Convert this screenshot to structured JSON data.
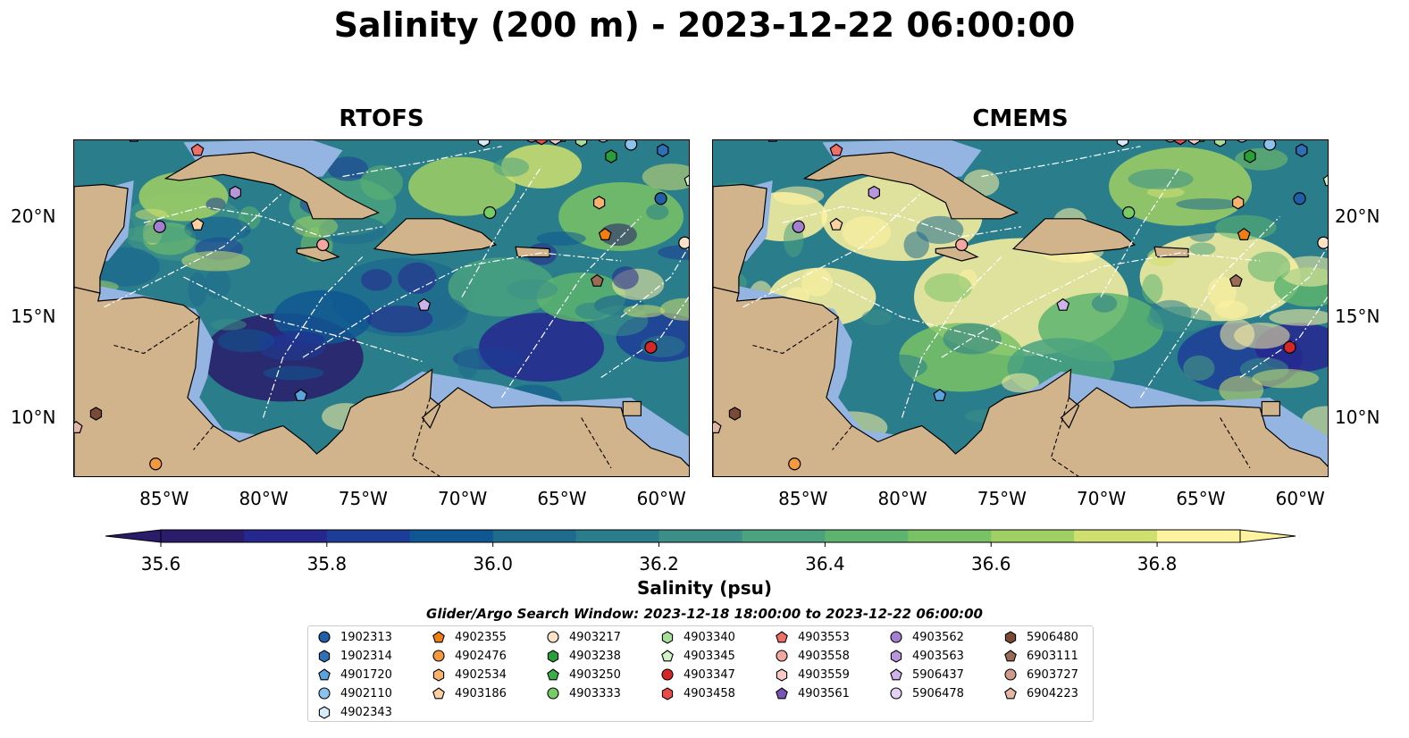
{
  "title": "Salinity (200 m) - 2023-12-22 06:00:00",
  "panels": [
    {
      "title": "RTOFS"
    },
    {
      "title": "CMEMS"
    }
  ],
  "chart_data": {
    "type": "heatmap",
    "title": "Salinity (200 m) - 2023-12-22 06:00:00",
    "panel_titles": [
      "RTOFS",
      "CMEMS"
    ],
    "x_ticks": [
      "85°W",
      "80°W",
      "75°W",
      "70°W",
      "65°W",
      "60°W"
    ],
    "y_ticks": [
      "20°N",
      "15°N",
      "10°N"
    ],
    "xlim": [
      -89.5,
      -58.5
    ],
    "ylim": [
      7,
      23.8
    ],
    "colorbar": {
      "label": "Salinity (psu)",
      "ticks": [
        "35.6",
        "35.8",
        "36.0",
        "36.2",
        "36.4",
        "36.6",
        "36.8"
      ],
      "min": 35.55,
      "max": 36.9,
      "colormap": [
        "#2a1b6b",
        "#26268f",
        "#1e3d98",
        "#0f5792",
        "#1f6b8e",
        "#2a7d8b",
        "#3b8f88",
        "#4aa27f",
        "#5db46f",
        "#7ac266",
        "#a0cf64",
        "#cfe06f",
        "#fff3a0"
      ]
    },
    "glider_argo_window": "Glider/Argo Search Window: 2023-12-18 18:00:00 to 2023-12-22 06:00:00",
    "floats": [
      {
        "id": "1902313",
        "shape": "circle",
        "color": "#1f5fa8",
        "lon": -60.0,
        "lat": 20.9
      },
      {
        "id": "1902314",
        "shape": "hexagon",
        "color": "#2e6fb5",
        "lon": -59.9,
        "lat": 23.3
      },
      {
        "id": "4901720",
        "shape": "pentagon",
        "color": "#5ba3dd",
        "lon": -78.1,
        "lat": 11.1
      },
      {
        "id": "4902110",
        "shape": "circle",
        "color": "#8cc3ee",
        "lon": -61.5,
        "lat": 23.6
      },
      {
        "id": "4902343",
        "shape": "hexagon",
        "color": "#d6ecfb",
        "lon": -68.9,
        "lat": 23.8
      },
      {
        "id": "4902355",
        "shape": "pentagon",
        "color": "#f07e12",
        "lon": -62.8,
        "lat": 19.1
      },
      {
        "id": "4902476",
        "shape": "circle",
        "color": "#f59a3c",
        "lon": -85.4,
        "lat": 7.7
      },
      {
        "id": "4902534",
        "shape": "hexagon",
        "color": "#f8b26e",
        "lon": -63.1,
        "lat": 20.7
      },
      {
        "id": "4903186",
        "shape": "pentagon",
        "color": "#fbd0a2",
        "lon": -83.3,
        "lat": 19.6
      },
      {
        "id": "4903217",
        "shape": "circle",
        "color": "#fde2c8",
        "lon": -58.8,
        "lat": 18.7
      },
      {
        "id": "4903238",
        "shape": "hexagon",
        "color": "#2a9e3a",
        "lon": -62.5,
        "lat": 23.0
      },
      {
        "id": "4903250",
        "shape": "pentagon",
        "color": "#3cae45",
        "lon": -65.0,
        "lat": 24.0
      },
      {
        "id": "4903333",
        "shape": "circle",
        "color": "#77cc66",
        "lon": -68.6,
        "lat": 20.2
      },
      {
        "id": "4903340",
        "shape": "hexagon",
        "color": "#a8df9a",
        "lon": -64.0,
        "lat": 23.8
      },
      {
        "id": "4903345",
        "shape": "pentagon",
        "color": "#d2f2c8",
        "lon": -58.5,
        "lat": 21.8
      },
      {
        "id": "4903347",
        "shape": "circle",
        "color": "#d62728",
        "lon": -60.5,
        "lat": 13.5
      },
      {
        "id": "4903458",
        "shape": "hexagon",
        "color": "#e94b4b",
        "lon": -66.0,
        "lat": 23.9
      },
      {
        "id": "4903553",
        "shape": "pentagon",
        "color": "#ef6f66",
        "lon": -83.3,
        "lat": 23.3
      },
      {
        "id": "4903558",
        "shape": "circle",
        "color": "#f4a6a1",
        "lon": -77.0,
        "lat": 18.6
      },
      {
        "id": "4903559",
        "shape": "hexagon",
        "color": "#f9c9c5",
        "lon": -65.3,
        "lat": 23.9
      },
      {
        "id": "4903561",
        "shape": "pentagon",
        "color": "#7a55b8",
        "lon": -86.5,
        "lat": 24.0
      },
      {
        "id": "4903562",
        "shape": "circle",
        "color": "#a57fcf",
        "lon": -85.2,
        "lat": 19.5
      },
      {
        "id": "4903563",
        "shape": "hexagon",
        "color": "#b896da",
        "lon": -81.4,
        "lat": 21.2
      },
      {
        "id": "5906437",
        "shape": "pentagon",
        "color": "#cdb3e8",
        "lon": -71.9,
        "lat": 15.6
      },
      {
        "id": "5906478",
        "shape": "circle",
        "color": "#e3d2f4",
        "lon": -62.9,
        "lat": 24.0
      },
      {
        "id": "5906480",
        "shape": "hexagon",
        "color": "#7a4a35",
        "lon": -88.4,
        "lat": 10.2
      },
      {
        "id": "6903111",
        "shape": "pentagon",
        "color": "#9c6b55",
        "lon": -63.2,
        "lat": 16.8
      },
      {
        "id": "6903727",
        "shape": "circle",
        "color": "#cf9a8a",
        "lon": -66.5,
        "lat": 24.0
      },
      {
        "id": "6904223",
        "shape": "pentagon",
        "color": "#e3b6a6",
        "lon": -89.4,
        "lat": 9.5
      }
    ]
  },
  "palette": {
    "land": "#d2b48c",
    "shallow": "#94b4e2",
    "route": "#ffffff"
  }
}
